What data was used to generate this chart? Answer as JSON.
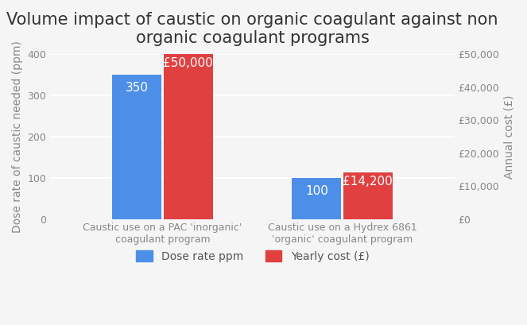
{
  "title": "Volume impact of caustic on organic coagulant against non\norganic coagulant programs",
  "categories": [
    "Caustic use on a PAC 'inorganic'\ncoagulant program",
    "Caustic use on a Hydrex 6861\n'organic' coagulant program"
  ],
  "dose_rate_ppm": [
    350,
    100
  ],
  "yearly_cost": [
    50000,
    14200
  ],
  "dose_rate_scale": 400,
  "cost_scale": 50000,
  "ylabel_left": "Dose rate of caustic needed (ppm)",
  "ylabel_right": "Annual cost (£)",
  "bar_color_blue": "#4D8FE8",
  "bar_color_red": "#E04040",
  "background_color": "#F5F5F5",
  "legend_labels": [
    "Dose rate ppm",
    "Yearly cost (£)"
  ],
  "bar_labels_blue": [
    "350",
    "100"
  ],
  "bar_labels_red": [
    "£50,000",
    "£14,200"
  ],
  "left_yticks": [
    0,
    100,
    200,
    300,
    400
  ],
  "right_yticks_labels": [
    "£0",
    "£10,000",
    "£20,000",
    "£30,000",
    "£40,000",
    "£50,000"
  ],
  "right_yticks_vals": [
    0,
    10000,
    20000,
    30000,
    40000,
    50000
  ],
  "title_fontsize": 15,
  "axis_label_fontsize": 10,
  "tick_fontsize": 9,
  "bar_label_fontsize": 11
}
